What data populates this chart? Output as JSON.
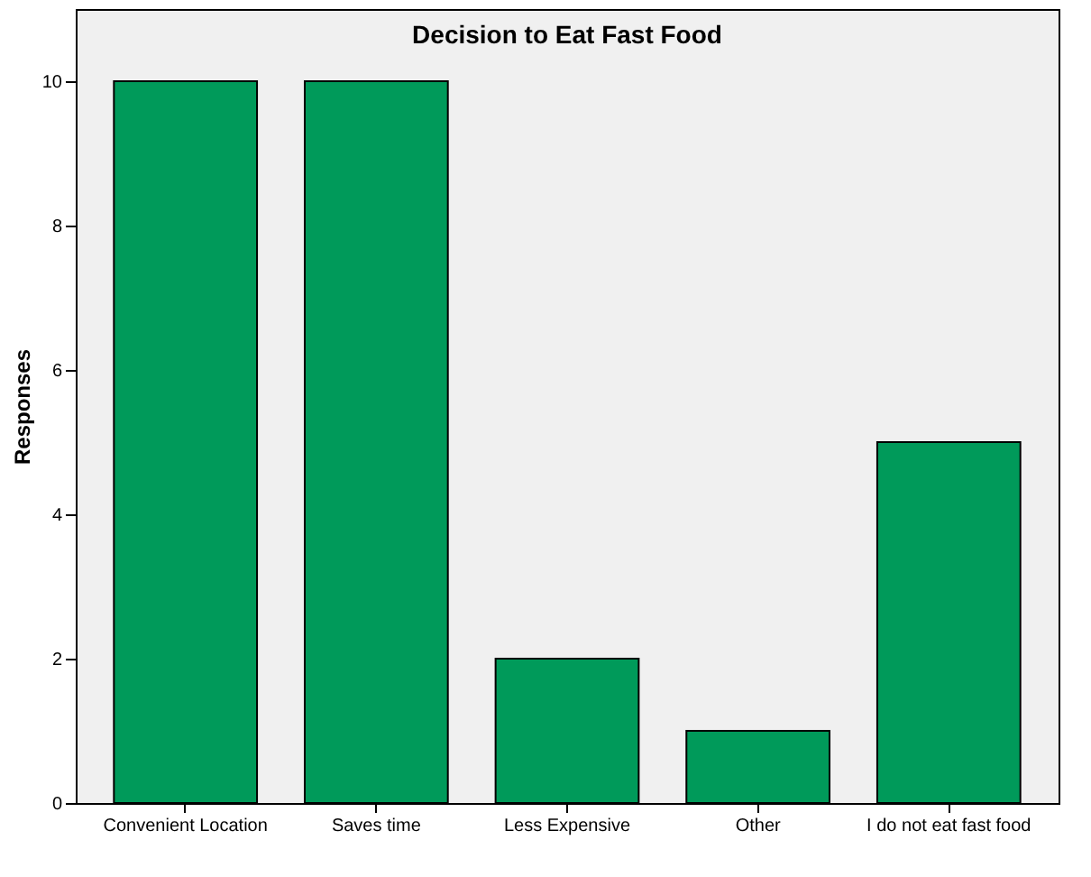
{
  "chart_data": {
    "type": "bar",
    "title": "Decision to Eat Fast Food",
    "ylabel": "Responses",
    "categories": [
      "Convenient Location",
      "Saves time",
      "Less Expensive",
      "Other",
      "I do not eat fast food"
    ],
    "values": [
      10,
      10,
      2,
      1,
      5
    ],
    "color": "#009a5a",
    "ylim": [
      0,
      11
    ],
    "yticks": [
      0,
      2,
      4,
      6,
      8,
      10
    ],
    "grid": false
  }
}
